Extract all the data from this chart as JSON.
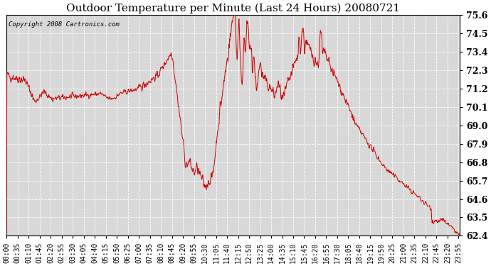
{
  "title": "Outdoor Temperature per Minute (Last 24 Hours) 20080721",
  "copyright": "Copyright 2008 Cartronics.com",
  "line_color": "#cc0000",
  "bg_color": "#ffffff",
  "plot_bg_color": "#d8d8d8",
  "grid_color": "#ffffff",
  "ylim": [
    62.4,
    75.6
  ],
  "yticks": [
    62.4,
    63.5,
    64.6,
    65.7,
    66.8,
    67.9,
    69.0,
    70.1,
    71.2,
    72.3,
    73.4,
    74.5,
    75.6
  ],
  "title_fontsize": 11,
  "tick_fontsize": 7,
  "ylabel_fontsize": 9,
  "copyright_fontsize": 6.5
}
